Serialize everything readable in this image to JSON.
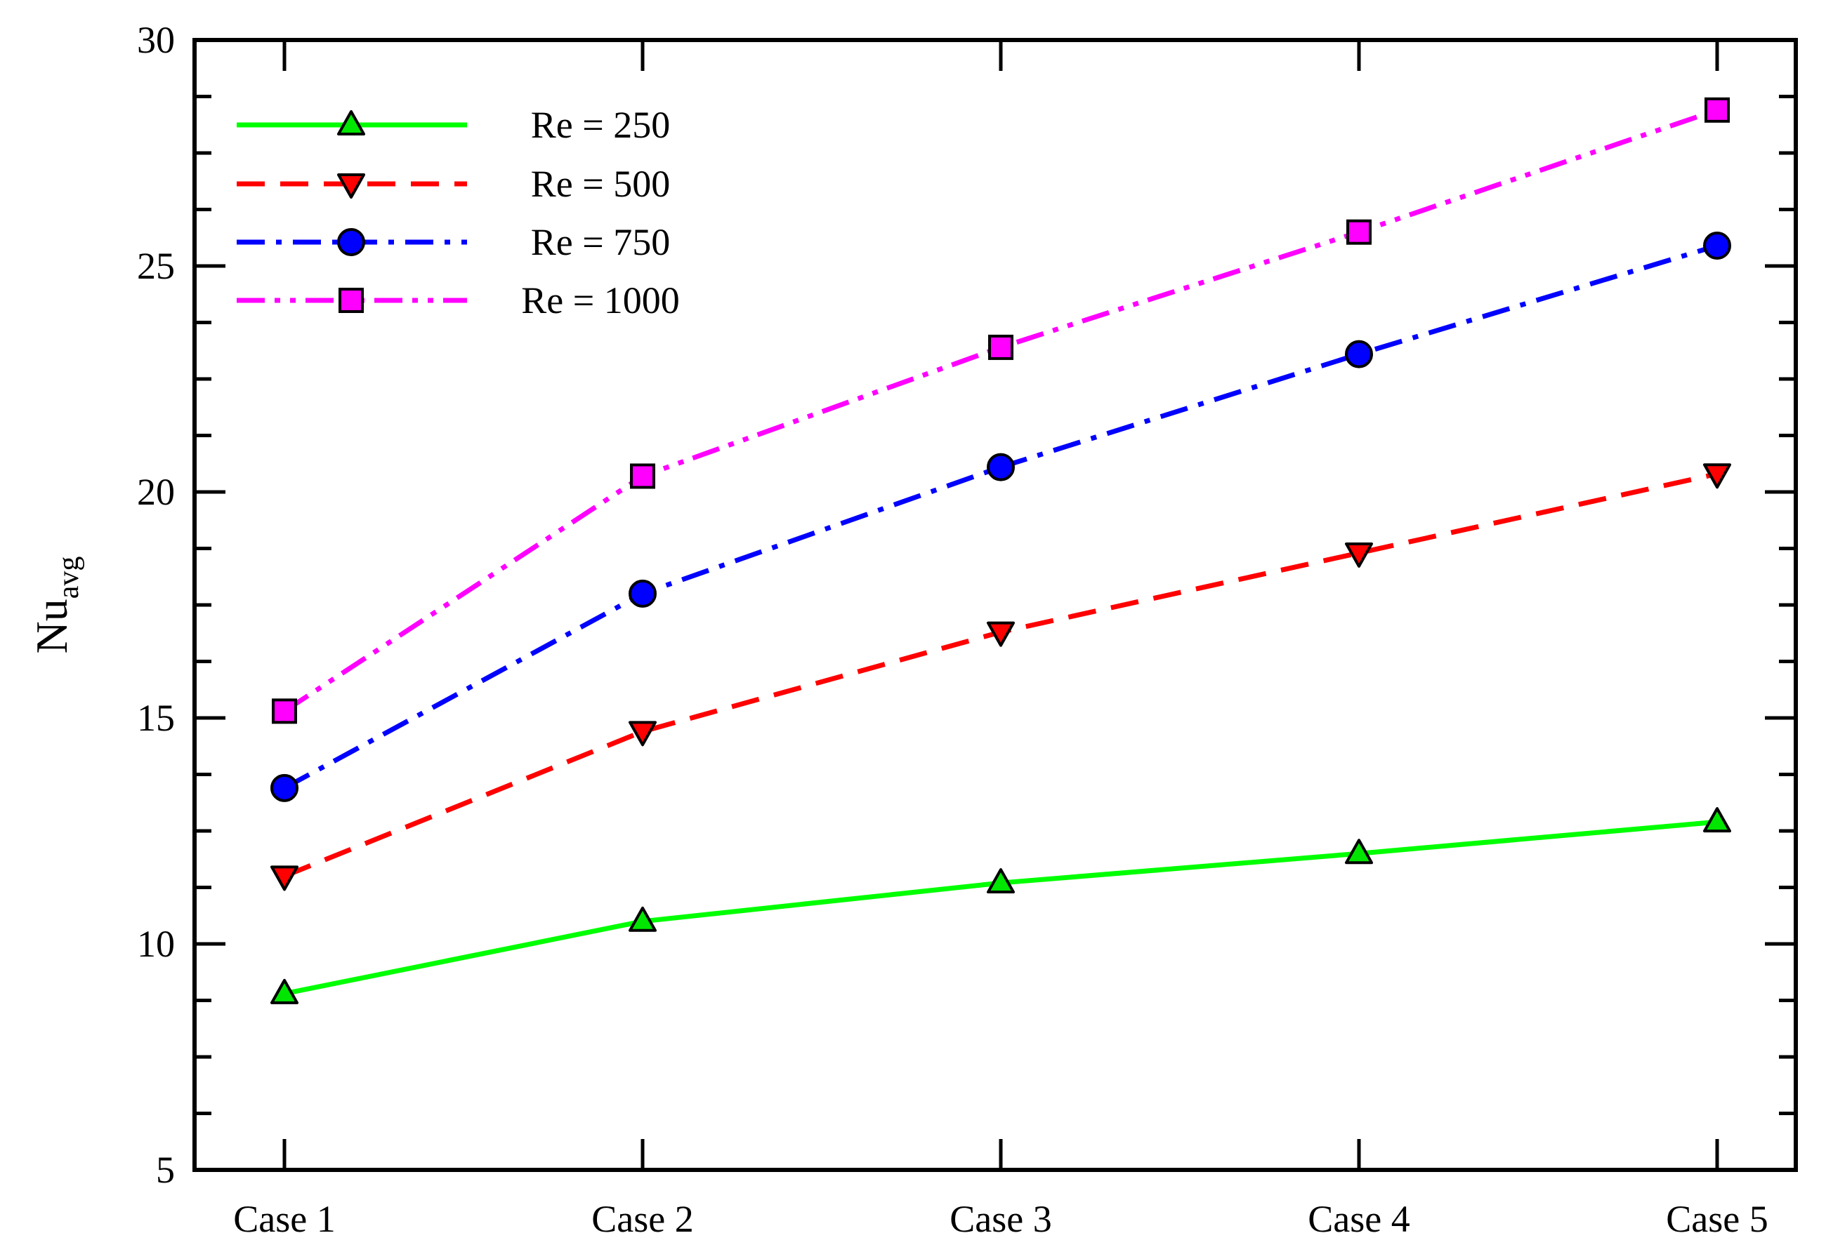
{
  "chart_data": {
    "type": "line",
    "title": "",
    "xlabel": "",
    "ylabel": "Nu",
    "ylabel_subscript": "avg",
    "categories": [
      "Case 1",
      "Case 2",
      "Case 3",
      "Case 4",
      "Case 5"
    ],
    "ylim": [
      5,
      30
    ],
    "yticks": [
      5,
      10,
      15,
      20,
      25,
      30
    ],
    "legend_position": "top-left",
    "grid": false,
    "series": [
      {
        "name": "Re = 250",
        "values": [
          8.9,
          10.5,
          11.35,
          12.0,
          12.7
        ],
        "color": "#00ff00",
        "marker": "triangle-up",
        "marker_fill": "#00e600",
        "dash": "solid"
      },
      {
        "name": "Re = 500",
        "values": [
          11.5,
          14.7,
          16.9,
          18.65,
          20.4
        ],
        "color": "#ff0000",
        "marker": "triangle-down",
        "marker_fill": "#ff0000",
        "dash": "dash"
      },
      {
        "name": "Re = 750",
        "values": [
          13.45,
          17.75,
          20.55,
          23.05,
          25.45
        ],
        "color": "#0000ff",
        "marker": "circle",
        "marker_fill": "#0000ff",
        "dash": "dashdot"
      },
      {
        "name": "Re = 1000",
        "values": [
          15.15,
          20.35,
          23.2,
          25.75,
          28.45
        ],
        "color": "#ff00ff",
        "marker": "square",
        "marker_fill": "#ff00ff",
        "dash": "dashdotdot"
      }
    ]
  }
}
